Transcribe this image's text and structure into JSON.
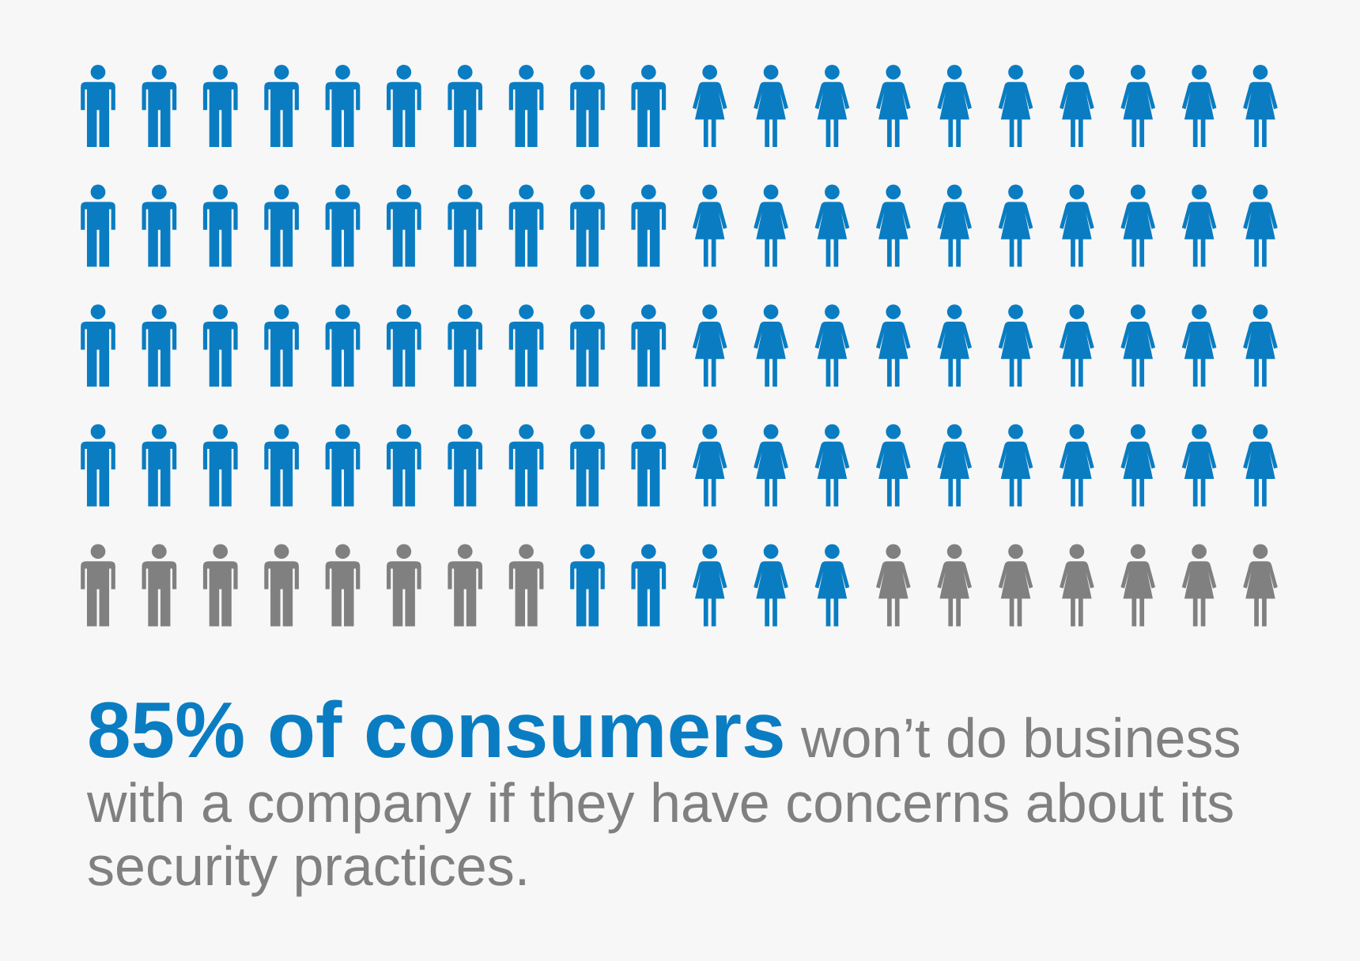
{
  "chart_data": {
    "type": "other",
    "title": "of consumers",
    "subtitle": "won’t do business with a company if they have concerns about its security practices.",
    "values": [
      85
    ],
    "value_labels": [
      "85%"
    ],
    "colors": [
      "#0a7dc2"
    ]
  }
}
